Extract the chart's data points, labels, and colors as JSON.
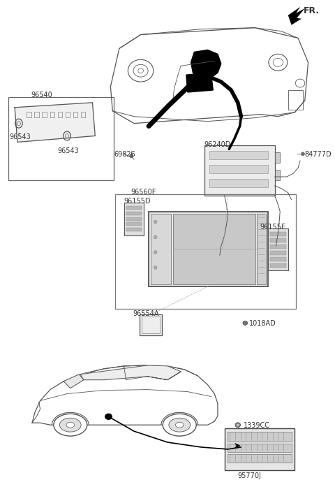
{
  "bg_color": "#ffffff",
  "lc": "#555555",
  "labels": {
    "FR": "FR.",
    "96540": "96540",
    "96543a": "96543",
    "96543b": "96543",
    "69826": "69826",
    "96240D": "96240D",
    "84777D": "84777D",
    "96560F": "96560F",
    "96155D": "96155D",
    "96155E": "96155E",
    "96554A": "96554A",
    "1018AD": "1018AD",
    "1339CC": "1339CC",
    "95770J": "95770J"
  },
  "fs": 7
}
